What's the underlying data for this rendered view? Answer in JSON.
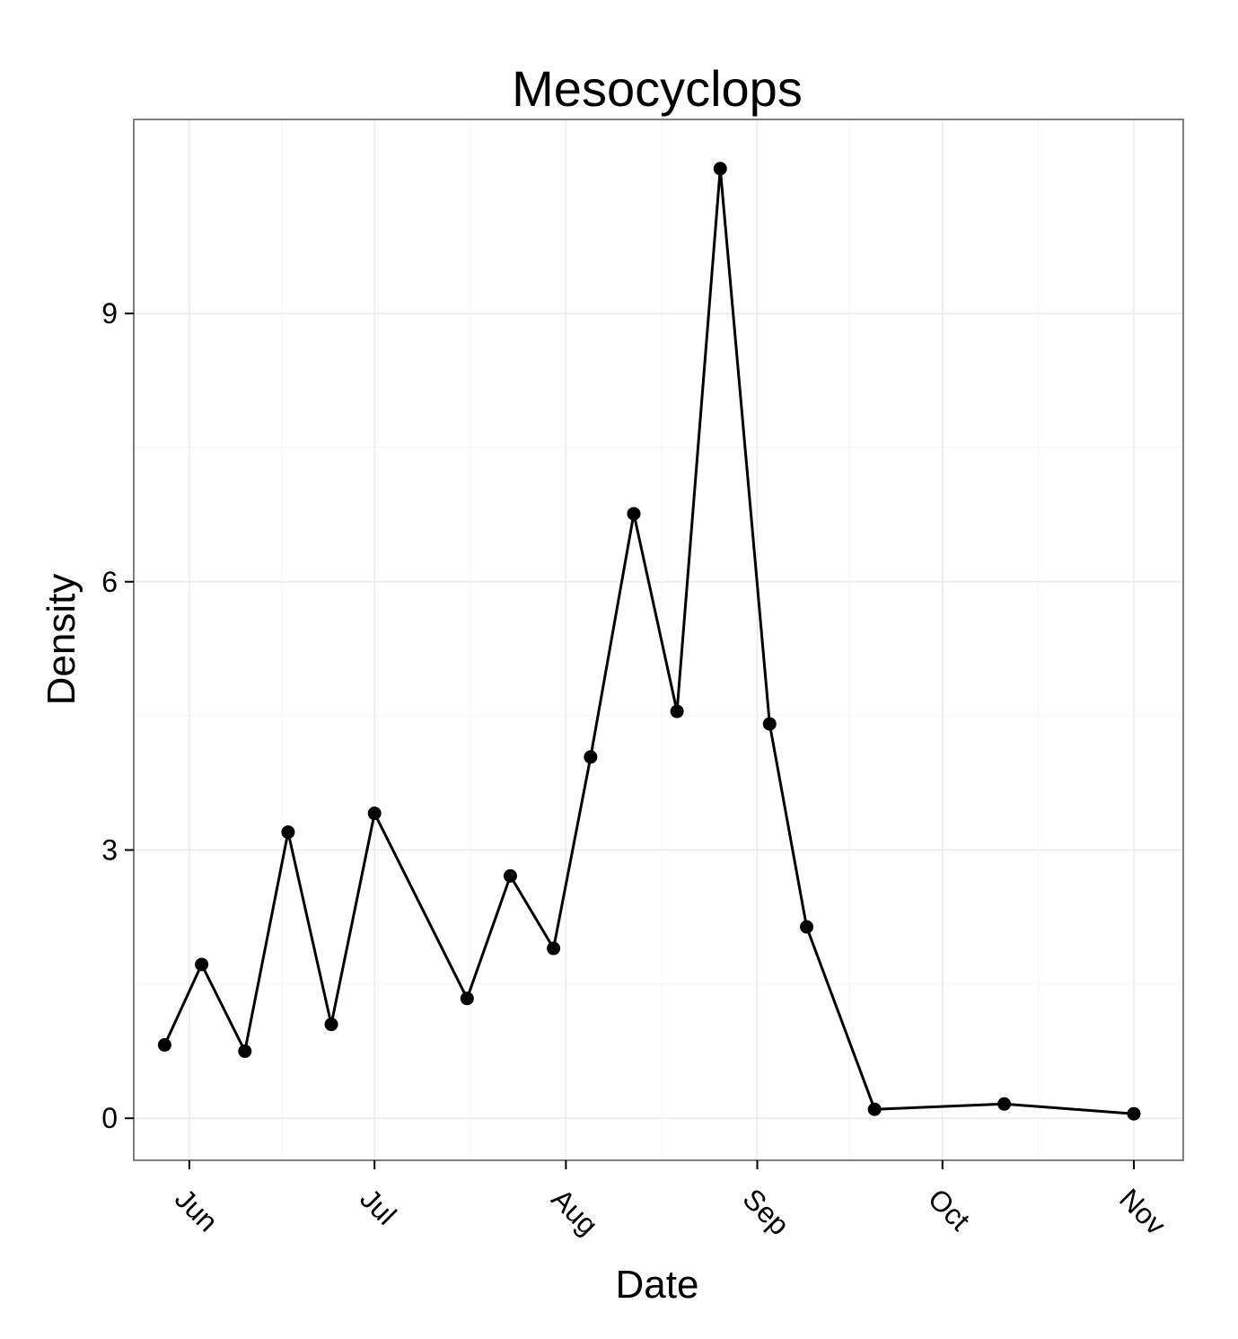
{
  "chart_data": {
    "type": "line",
    "title": "Mesocyclops",
    "xlabel": "Date",
    "ylabel": "Density",
    "x_type": "date",
    "x_ticks": [
      "Jun",
      "Jul",
      "Aug",
      "Sep",
      "Oct",
      "Nov"
    ],
    "x_tick_dates": [
      "2000-06-01",
      "2000-07-01",
      "2000-08-01",
      "2000-09-01",
      "2000-10-01",
      "2000-11-01"
    ],
    "y_ticks": [
      0,
      3,
      6,
      9
    ],
    "xlim": [
      "2000-05-23",
      "2000-11-09"
    ],
    "ylim": [
      -0.47,
      11.17
    ],
    "grid": true,
    "legend": "none",
    "series": [
      {
        "color": "#000000",
        "x": [
          "2000-05-28",
          "2000-06-03",
          "2000-06-10",
          "2000-06-17",
          "2000-06-24",
          "2000-07-01",
          "2000-07-16",
          "2000-07-23",
          "2000-07-30",
          "2000-08-05",
          "2000-08-12",
          "2000-08-19",
          "2000-08-26",
          "2000-09-03",
          "2000-09-09",
          "2000-09-20",
          "2000-10-11",
          "2000-11-01"
        ],
        "y": [
          0.82,
          1.72,
          0.75,
          3.2,
          1.05,
          3.41,
          1.34,
          2.71,
          1.9,
          4.04,
          6.76,
          4.55,
          10.62,
          4.41,
          2.14,
          0.1,
          0.16,
          0.05
        ]
      }
    ]
  }
}
